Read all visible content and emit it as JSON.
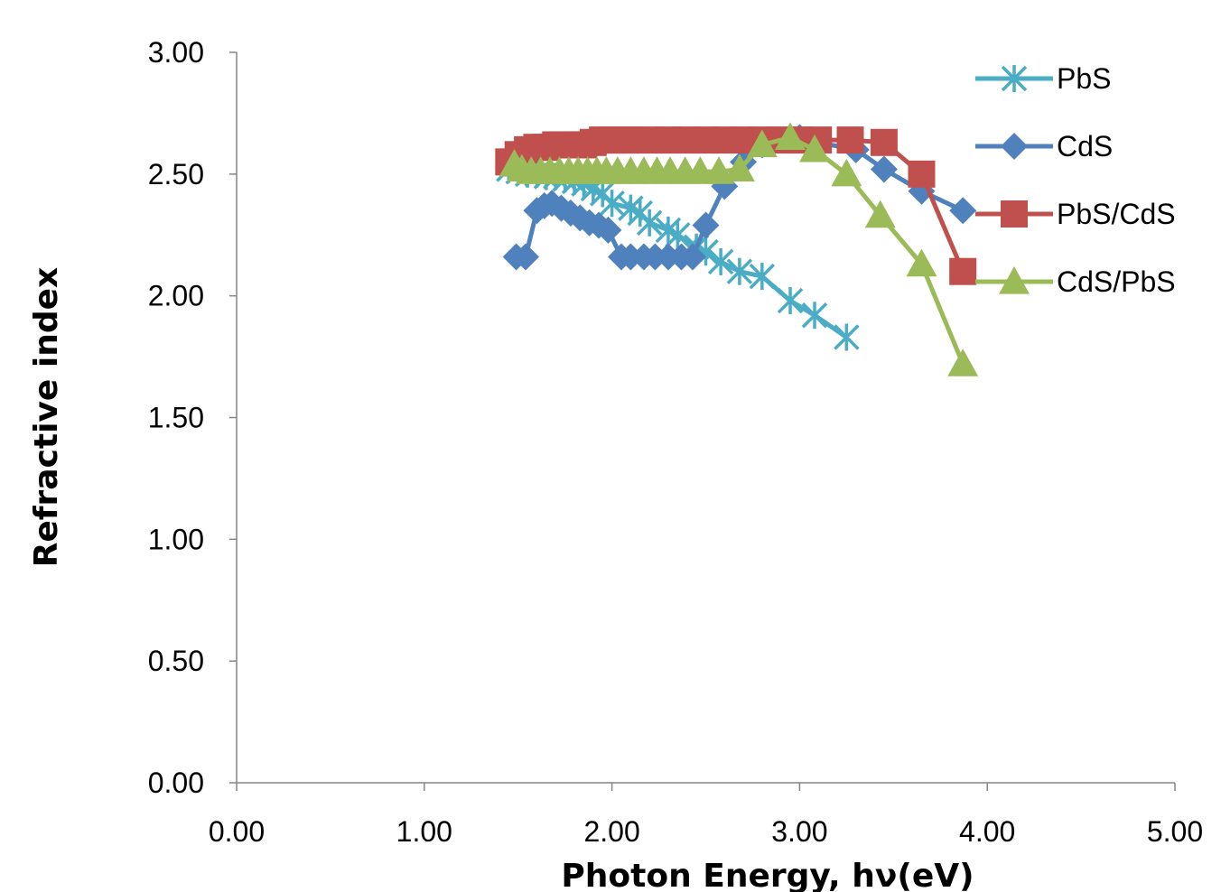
{
  "chart_data": {
    "type": "line",
    "title": "",
    "xlabel": "Photon Energy, hν(eV)",
    "ylabel": "Refractive index",
    "xlim": [
      0,
      5
    ],
    "ylim": [
      0,
      3
    ],
    "x_ticks": [
      "0.00",
      "1.00",
      "2.00",
      "3.00",
      "4.00",
      "5.00"
    ],
    "y_ticks": [
      "0.00",
      "0.50",
      "1.00",
      "1.50",
      "2.00",
      "2.50",
      "3.00"
    ],
    "grid": false,
    "legend_position": "top-right",
    "series": [
      {
        "name": "PbS",
        "color": "#4bacc6",
        "marker": "star",
        "x": [
          1.45,
          1.5,
          1.55,
          1.6,
          1.65,
          1.7,
          1.75,
          1.8,
          1.85,
          1.9,
          1.95,
          2.0,
          2.1,
          2.15,
          2.2,
          2.3,
          2.35,
          2.45,
          2.5,
          2.58,
          2.68,
          2.8,
          2.95,
          3.08,
          3.25
        ],
        "y": [
          2.52,
          2.51,
          2.5,
          2.5,
          2.49,
          2.49,
          2.48,
          2.47,
          2.46,
          2.44,
          2.42,
          2.38,
          2.36,
          2.34,
          2.3,
          2.27,
          2.25,
          2.2,
          2.18,
          2.14,
          2.1,
          2.08,
          1.98,
          1.92,
          1.83
        ]
      },
      {
        "name": "CdS",
        "color": "#4f81bd",
        "marker": "diamond",
        "x": [
          1.49,
          1.54,
          1.6,
          1.64,
          1.68,
          1.73,
          1.78,
          1.83,
          1.88,
          1.93,
          1.98,
          2.05,
          2.1,
          2.17,
          2.23,
          2.3,
          2.37,
          2.43,
          2.5,
          2.6,
          2.7,
          2.8,
          2.9,
          3.0,
          3.1,
          3.3,
          3.45,
          3.65,
          3.87
        ],
        "y": [
          2.16,
          2.16,
          2.35,
          2.37,
          2.38,
          2.36,
          2.34,
          2.32,
          2.3,
          2.29,
          2.27,
          2.16,
          2.16,
          2.16,
          2.16,
          2.16,
          2.16,
          2.16,
          2.29,
          2.45,
          2.55,
          2.62,
          2.64,
          2.65,
          2.63,
          2.6,
          2.52,
          2.43,
          2.35
        ]
      },
      {
        "name": "PbS/CdS",
        "color": "#c0504d",
        "marker": "square",
        "x": [
          1.45,
          1.5,
          1.55,
          1.6,
          1.65,
          1.7,
          1.75,
          1.8,
          1.85,
          1.9,
          1.95,
          2.0,
          2.05,
          2.1,
          2.2,
          2.3,
          2.4,
          2.5,
          2.6,
          2.7,
          2.8,
          2.9,
          3.0,
          3.1,
          3.27,
          3.45,
          3.65,
          3.87
        ],
        "y": [
          2.55,
          2.58,
          2.6,
          2.61,
          2.61,
          2.62,
          2.62,
          2.62,
          2.62,
          2.63,
          2.64,
          2.64,
          2.64,
          2.64,
          2.64,
          2.64,
          2.64,
          2.64,
          2.64,
          2.64,
          2.64,
          2.64,
          2.64,
          2.64,
          2.64,
          2.63,
          2.5,
          2.1
        ]
      },
      {
        "name": "CdS/PbS",
        "color": "#9bbb59",
        "marker": "triangle",
        "x": [
          1.48,
          1.52,
          1.57,
          1.62,
          1.67,
          1.72,
          1.77,
          1.82,
          1.87,
          1.92,
          1.97,
          2.03,
          2.1,
          2.17,
          2.24,
          2.31,
          2.39,
          2.47,
          2.57,
          2.68,
          2.8,
          2.95,
          3.08,
          3.25,
          3.43,
          3.65,
          3.87
        ],
        "y": [
          2.54,
          2.52,
          2.51,
          2.51,
          2.51,
          2.51,
          2.51,
          2.51,
          2.51,
          2.51,
          2.51,
          2.51,
          2.51,
          2.51,
          2.51,
          2.51,
          2.51,
          2.51,
          2.51,
          2.52,
          2.62,
          2.65,
          2.6,
          2.5,
          2.33,
          2.13,
          1.72
        ]
      }
    ]
  }
}
